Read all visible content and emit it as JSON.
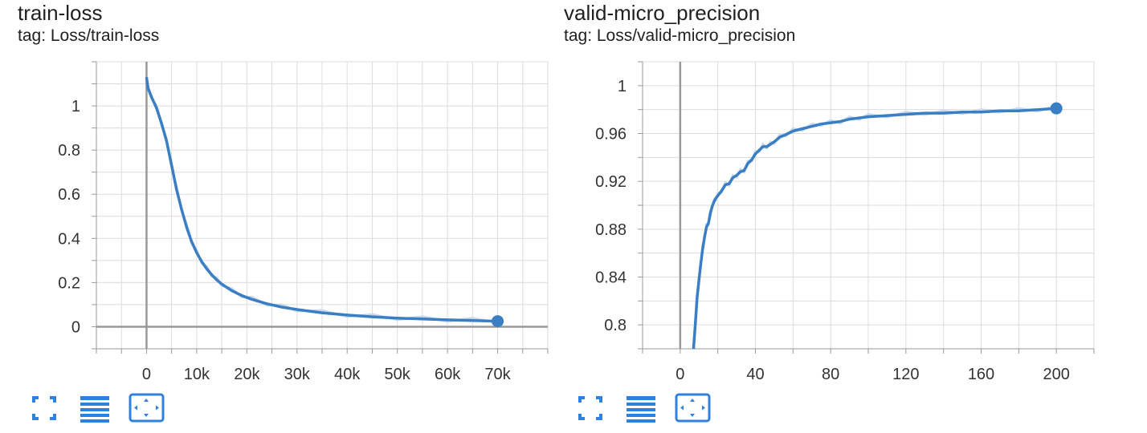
{
  "colors": {
    "series": "#3a7ec4",
    "series_raw": "#c9d8ec",
    "grid": "#dcdcdc",
    "axis": "#999999",
    "icon": "#2f82dc"
  },
  "toolbar_icons": [
    "fullscreen-icon",
    "data-table-icon",
    "fit-domain-icon"
  ],
  "cards": [
    {
      "title": "train-loss",
      "tag": "tag: Loss/train-loss",
      "chart_data": {
        "type": "line",
        "title": "train-loss",
        "xlabel": "",
        "ylabel": "",
        "xlim": [
          -10000,
          80000
        ],
        "ylim": [
          -0.1,
          1.2
        ],
        "x_ticks": [
          0,
          10000,
          20000,
          30000,
          40000,
          50000,
          60000,
          70000
        ],
        "x_tick_labels": [
          "0",
          "10k",
          "20k",
          "30k",
          "40k",
          "50k",
          "60k",
          "70k"
        ],
        "y_ticks": [
          0,
          0.2,
          0.4,
          0.6,
          0.8,
          1
        ],
        "y_tick_labels": [
          "0",
          "0.2",
          "0.4",
          "0.6",
          "0.8",
          "1"
        ],
        "grid": true,
        "series": [
          {
            "x": [
              0,
              300,
              1000,
              2000,
              3000,
              4000,
              5000,
              6000,
              7000,
              8000,
              9000,
              10000,
              11000,
              12000,
              13000,
              14000,
              15000,
              17000,
              19000,
              21000,
              24000,
              27000,
              30000,
              35000,
              40000,
              45000,
              50000,
              55000,
              60000,
              65000,
              70000
            ],
            "y": [
              1.13,
              1.08,
              1.04,
              0.99,
              0.92,
              0.84,
              0.73,
              0.62,
              0.53,
              0.45,
              0.385,
              0.335,
              0.295,
              0.262,
              0.235,
              0.212,
              0.193,
              0.163,
              0.141,
              0.124,
              0.104,
              0.089,
              0.078,
              0.063,
              0.053,
              0.045,
              0.039,
              0.035,
              0.031,
              0.028,
              0.025
            ]
          }
        ],
        "last_point": {
          "x": 70000,
          "y": 0.025
        }
      }
    },
    {
      "title": "valid-micro_precision",
      "tag": "tag: Loss/valid-micro_precision",
      "chart_data": {
        "type": "line",
        "title": "valid-micro_precision",
        "xlabel": "",
        "ylabel": "",
        "xlim": [
          -20,
          220
        ],
        "ylim": [
          0.78,
          1.02
        ],
        "x_ticks": [
          0,
          40,
          80,
          120,
          160,
          200
        ],
        "x_tick_labels": [
          "0",
          "40",
          "80",
          "120",
          "160",
          "200"
        ],
        "y_ticks": [
          0.8,
          0.84,
          0.88,
          0.92,
          0.96,
          1
        ],
        "y_tick_labels": [
          "0.8",
          "0.84",
          "0.88",
          "0.92",
          "0.96",
          "1"
        ],
        "grid": true,
        "series": [
          {
            "x": [
              7,
              8,
              9,
              10,
              11,
              12,
              13,
              14,
              15,
              16,
              17,
              18,
              19,
              20,
              22,
              24,
              26,
              28,
              30,
              32,
              34,
              36,
              38,
              40,
              42,
              44,
              46,
              48,
              50,
              53,
              56,
              60,
              65,
              70,
              75,
              80,
              85,
              90,
              95,
              100,
              110,
              120,
              130,
              140,
              150,
              160,
              170,
              180,
              190,
              200
            ],
            "y": [
              0.778,
              0.8,
              0.823,
              0.838,
              0.852,
              0.864,
              0.874,
              0.882,
              0.885,
              0.893,
              0.899,
              0.903,
              0.906,
              0.908,
              0.912,
              0.917,
              0.918,
              0.923,
              0.925,
              0.928,
              0.929,
              0.935,
              0.938,
              0.943,
              0.946,
              0.949,
              0.949,
              0.951,
              0.953,
              0.957,
              0.959,
              0.962,
              0.964,
              0.966,
              0.968,
              0.969,
              0.97,
              0.972,
              0.973,
              0.974,
              0.975,
              0.976,
              0.977,
              0.977,
              0.978,
              0.978,
              0.979,
              0.979,
              0.98,
              0.981
            ]
          }
        ],
        "last_point": {
          "x": 200,
          "y": 0.981
        }
      }
    }
  ]
}
